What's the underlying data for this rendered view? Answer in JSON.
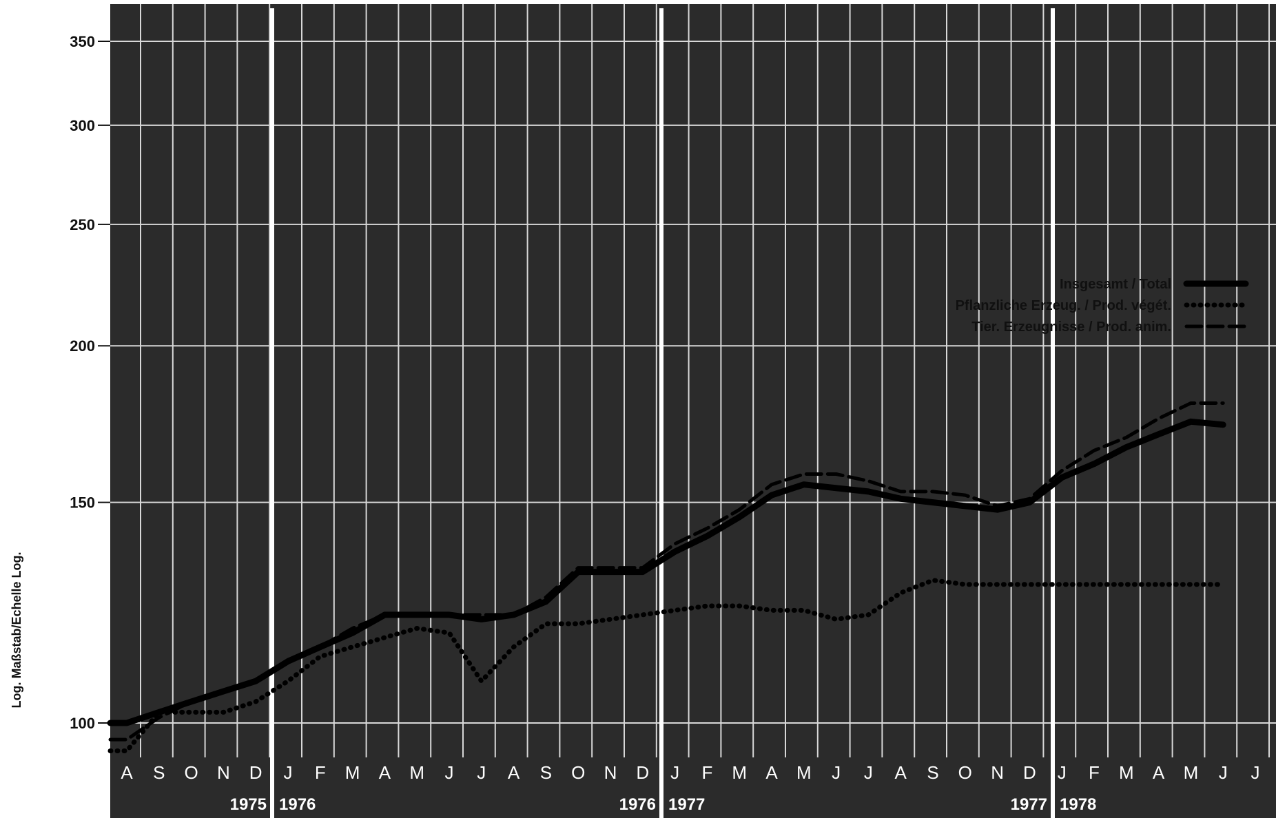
{
  "chart_data": {
    "type": "line",
    "ylabel": "Log. Maßstab/Echelle Log.",
    "yscale": "log",
    "ylim": [
      95,
      370
    ],
    "yticks": [
      100,
      150,
      200,
      250,
      300,
      350
    ],
    "grid": true,
    "legend_position": "top-right",
    "x": [
      "1975-08",
      "1975-09",
      "1975-10",
      "1975-11",
      "1975-12",
      "1976-01",
      "1976-02",
      "1976-03",
      "1976-04",
      "1976-05",
      "1976-06",
      "1976-07",
      "1976-08",
      "1976-09",
      "1976-10",
      "1976-11",
      "1976-12",
      "1977-01",
      "1977-02",
      "1977-03",
      "1977-04",
      "1977-05",
      "1977-06",
      "1977-07",
      "1977-08",
      "1977-09",
      "1977-10",
      "1977-11",
      "1977-12",
      "1978-01",
      "1978-02",
      "1978-03",
      "1978-04",
      "1978-05",
      "1978-06"
    ],
    "month_labels": [
      "A",
      "S",
      "O",
      "N",
      "D",
      "J",
      "F",
      "M",
      "A",
      "M",
      "J",
      "J",
      "A",
      "S",
      "O",
      "N",
      "D",
      "J",
      "F",
      "M",
      "A",
      "M",
      "J",
      "J",
      "A",
      "S",
      "O",
      "N",
      "D",
      "J",
      "F",
      "M",
      "A",
      "M",
      "J",
      "J"
    ],
    "year_labels": [
      "1975",
      "1976",
      "1976",
      "1977",
      "1977",
      "1978"
    ],
    "series": [
      {
        "name": "Insgesamt / Total",
        "style": "solid",
        "color": "#000000",
        "values": [
          100,
          102,
          104,
          106,
          108,
          112,
          115,
          118,
          122,
          122,
          122,
          121,
          122,
          125,
          132,
          132,
          132,
          137,
          141,
          146,
          152,
          155,
          154,
          153,
          151,
          150,
          149,
          148,
          150,
          157,
          161,
          166,
          170,
          174,
          173
        ]
      },
      {
        "name": "Pflanzliche Erzeug. / Prod. végét.",
        "style": "dotted",
        "color": "#000000",
        "values": [
          95,
          102,
          102,
          102,
          104,
          108,
          113,
          115,
          117,
          119,
          118,
          108,
          115,
          120,
          120,
          121,
          122,
          123,
          124,
          124,
          123,
          123,
          121,
          122,
          127,
          130,
          129,
          129,
          129,
          129,
          129,
          129,
          129,
          129,
          129
        ]
      },
      {
        "name": "Tier. Erzeugnisse / Prod. anim.",
        "style": "dashed",
        "color": "#000000",
        "values": [
          97,
          101,
          104,
          106,
          108,
          112,
          115,
          119,
          122,
          122,
          122,
          122,
          122,
          126,
          133,
          133,
          133,
          139,
          143,
          148,
          155,
          158,
          158,
          156,
          153,
          153,
          152,
          149,
          151,
          159,
          165,
          169,
          175,
          180,
          180
        ]
      }
    ]
  }
}
